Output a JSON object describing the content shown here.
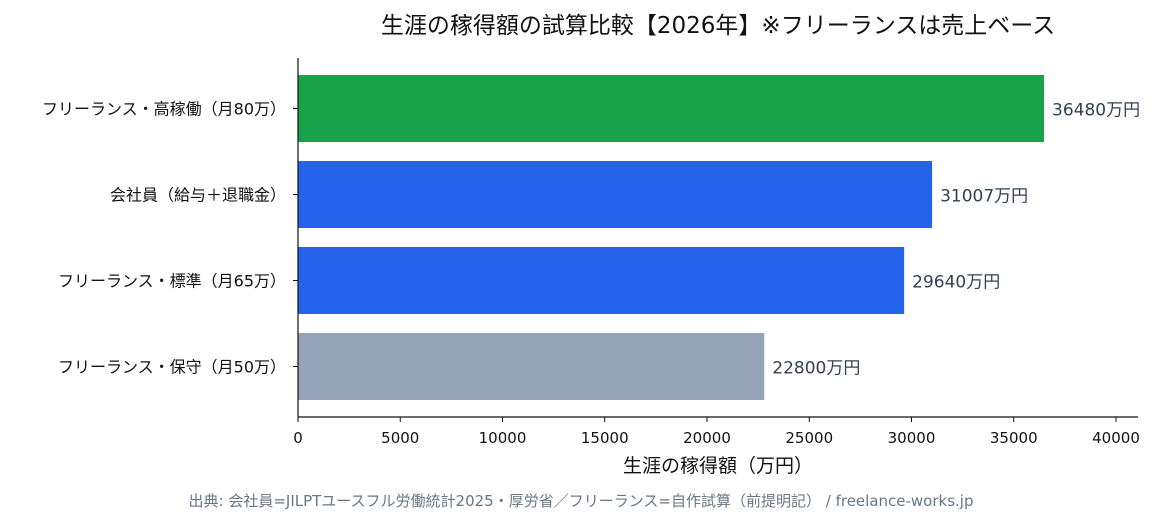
{
  "chart_data": {
    "type": "bar",
    "orientation": "horizontal",
    "title": "生涯の稼得額の試算比較【2026年】※フリーランスは売上ベース",
    "xlabel": "生涯の稼得額（万円）",
    "ylabel": "",
    "xlim": [
      0,
      40000
    ],
    "x_ticks": [
      0,
      5000,
      10000,
      15000,
      20000,
      25000,
      30000,
      35000,
      40000
    ],
    "x_tick_labels": [
      "0",
      "5000",
      "10000",
      "15000",
      "20000",
      "25000",
      "30000",
      "35000",
      "40000"
    ],
    "categories": [
      "フリーランス・高稼働（月80万）",
      "会社員（給与＋退職金）",
      "フリーランス・標準（月65万）",
      "フリーランス・保守（月50万）"
    ],
    "values": [
      36480,
      31007,
      29640,
      22800
    ],
    "value_labels": [
      "36480万円",
      "31007万円",
      "29640万円",
      "22800万円"
    ],
    "colors": [
      "#18a34a",
      "#2563eb",
      "#2563eb",
      "#94a3b8"
    ],
    "grid": false,
    "legend": "none"
  },
  "source_note": "出典: 会社員=JILPTユースフル労働統計2025・厚労省／フリーランス=自作試算（前提明記） / freelance-works.jp"
}
